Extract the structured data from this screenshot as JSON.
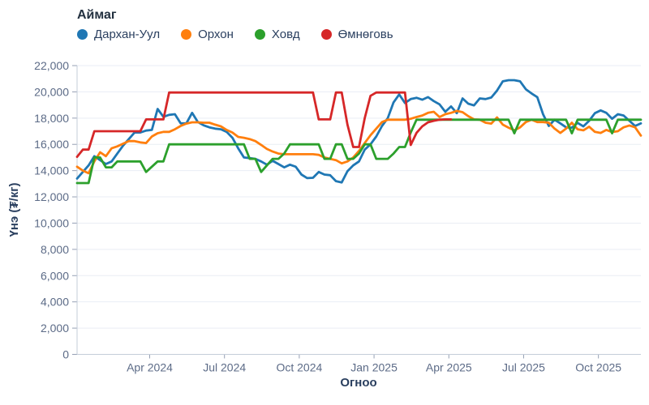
{
  "legend": {
    "title": "Аймаг",
    "items": [
      {
        "label": "Дархан-Уул",
        "color": "#1f77b4"
      },
      {
        "label": "Орхон",
        "color": "#ff7f0e"
      },
      {
        "label": "Ховд",
        "color": "#2ca02c"
      },
      {
        "label": "Өмнөговь",
        "color": "#d62728"
      }
    ]
  },
  "axes": {
    "x": {
      "title": "Огноо",
      "ticks": [
        {
          "label": "Apr 2024",
          "i": 12.62
        },
        {
          "label": "Jul 2024",
          "i": 25.62
        },
        {
          "label": "Oct 2024",
          "i": 38.62
        },
        {
          "label": "Jan 2025",
          "i": 51.62
        },
        {
          "label": "Apr 2025",
          "i": 64.62
        },
        {
          "label": "Jul 2025",
          "i": 77.62
        },
        {
          "label": "Oct 2025",
          "i": 90.62
        }
      ]
    },
    "y": {
      "title": "Үнэ (₮/кг)",
      "ticks": [
        {
          "label": "0",
          "value": 0
        },
        {
          "label": "2,000",
          "value": 2000
        },
        {
          "label": "4,000",
          "value": 4000
        },
        {
          "label": "6,000",
          "value": 6000
        },
        {
          "label": "8,000",
          "value": 8000
        },
        {
          "label": "10,000",
          "value": 10000
        },
        {
          "label": "12,000",
          "value": 12000
        },
        {
          "label": "14,000",
          "value": 14000
        },
        {
          "label": "16,000",
          "value": 16000
        },
        {
          "label": "18,000",
          "value": 18000
        },
        {
          "label": "20,000",
          "value": 20000
        },
        {
          "label": "22,000",
          "value": 22000
        }
      ]
    }
  },
  "colors": {
    "grid": "#e9edf4",
    "axis_line": "#c5cdd9",
    "tick_mark": "#95a0b4",
    "tick_text": "#5c6b87",
    "title_text": "#2a3f5f",
    "background": "#ffffff"
  },
  "chart_data": {
    "type": "line",
    "title": "",
    "xlabel": "Огноо",
    "ylabel": "Үнэ (₮/кг)",
    "ylim": [
      0,
      22000
    ],
    "grid": true,
    "legend_position": "top-left",
    "x_description": "weekly observations, Jan 2024 – late Nov 2025 (99 points)",
    "n_points": 99,
    "series": [
      {
        "name": "Дархан-Уул",
        "color": "#1f77b4",
        "values": [
          13400,
          13900,
          14400,
          15100,
          14800,
          14500,
          14700,
          15300,
          15900,
          16400,
          16900,
          16900,
          17050,
          17100,
          18700,
          18100,
          18250,
          18300,
          17600,
          17600,
          18400,
          17700,
          17450,
          17300,
          17200,
          17150,
          16950,
          16500,
          15700,
          15000,
          14950,
          14900,
          14700,
          14450,
          14750,
          14500,
          14250,
          14450,
          14300,
          13700,
          13430,
          13450,
          13900,
          13700,
          13650,
          13200,
          13100,
          13950,
          14400,
          14700,
          15600,
          16000,
          16600,
          17400,
          18000,
          19200,
          19800,
          19150,
          19450,
          19550,
          19400,
          19600,
          19300,
          19050,
          18480,
          18890,
          18380,
          19500,
          19100,
          18970,
          19500,
          19450,
          19570,
          20100,
          20800,
          20890,
          20890,
          20800,
          20200,
          19880,
          19600,
          18300,
          17400,
          17880,
          17600,
          17300,
          17270,
          17640,
          17370,
          17800,
          18380,
          18590,
          18400,
          17950,
          18300,
          18200,
          17800,
          17400,
          17600
        ]
      },
      {
        "name": "Орхон",
        "color": "#ff7f0e",
        "values": [
          14300,
          14000,
          13800,
          14700,
          15400,
          15100,
          15700,
          15850,
          16050,
          16250,
          16250,
          16150,
          16100,
          16600,
          16850,
          16950,
          16950,
          17150,
          17400,
          17580,
          17680,
          17680,
          17650,
          17650,
          17500,
          17370,
          17100,
          16900,
          16570,
          16500,
          16400,
          16250,
          15960,
          15650,
          15450,
          15300,
          15250,
          15250,
          15250,
          15250,
          15250,
          15250,
          15200,
          15000,
          14900,
          14800,
          14550,
          14700,
          15000,
          15500,
          16100,
          16700,
          17200,
          17700,
          17880,
          17880,
          17880,
          17880,
          17950,
          18080,
          18200,
          18400,
          18480,
          18080,
          18300,
          18400,
          18550,
          18450,
          18150,
          17900,
          17880,
          17650,
          17580,
          18050,
          17500,
          17270,
          17070,
          17300,
          17700,
          17880,
          17700,
          17700,
          17650,
          17200,
          16870,
          17200,
          17650,
          17150,
          17070,
          17350,
          16950,
          16870,
          17100,
          16940,
          17000,
          17300,
          17440,
          17300,
          16670
        ]
      },
      {
        "name": "Ховд",
        "color": "#2ca02c",
        "values": [
          13050,
          13050,
          13050,
          15000,
          15000,
          14250,
          14250,
          14700,
          14700,
          14700,
          14700,
          14700,
          13900,
          14300,
          14700,
          14700,
          16000,
          16000,
          16000,
          16000,
          16000,
          16000,
          16000,
          16000,
          16000,
          16000,
          16000,
          16000,
          16000,
          16000,
          14900,
          14900,
          13900,
          14400,
          14900,
          14900,
          15300,
          16000,
          16000,
          16000,
          16000,
          16000,
          16000,
          14900,
          14900,
          16000,
          16000,
          14900,
          14900,
          15300,
          16000,
          16000,
          14900,
          14900,
          14900,
          15300,
          15800,
          15800,
          16900,
          17880,
          17880,
          17880,
          17880,
          17880,
          17880,
          17880,
          17880,
          17880,
          17880,
          17880,
          17880,
          17880,
          17880,
          17880,
          17880,
          17880,
          16840,
          17880,
          17880,
          17880,
          17880,
          17880,
          17880,
          17880,
          17880,
          17880,
          16840,
          17880,
          17880,
          17880,
          17880,
          17880,
          17880,
          16840,
          17880,
          17880,
          17880,
          17880,
          17880
        ]
      },
      {
        "name": "Өмнөговь",
        "color": "#d62728",
        "values": [
          15050,
          15600,
          15600,
          17000,
          17000,
          17000,
          17000,
          17000,
          17000,
          17000,
          17000,
          17000,
          17900,
          17900,
          17900,
          17900,
          19950,
          19950,
          19950,
          19950,
          19950,
          19950,
          19950,
          19950,
          19950,
          19950,
          19950,
          19950,
          19950,
          19950,
          19950,
          19950,
          19950,
          19950,
          19950,
          19950,
          19950,
          19950,
          19950,
          19950,
          19950,
          19950,
          17900,
          17900,
          17900,
          19950,
          19950,
          17500,
          15800,
          15800,
          18000,
          19700,
          19950,
          19950,
          19950,
          19950,
          19950,
          19950,
          15950,
          16870,
          17370,
          17680,
          17800,
          17880,
          17900,
          17900,
          null,
          null,
          null,
          null,
          null,
          null,
          null,
          null,
          null,
          null,
          null,
          null,
          null,
          null,
          null,
          null,
          null,
          null,
          null,
          null,
          null,
          null,
          null,
          null,
          null,
          null,
          null,
          null,
          null,
          null,
          null,
          null,
          null
        ]
      }
    ]
  }
}
